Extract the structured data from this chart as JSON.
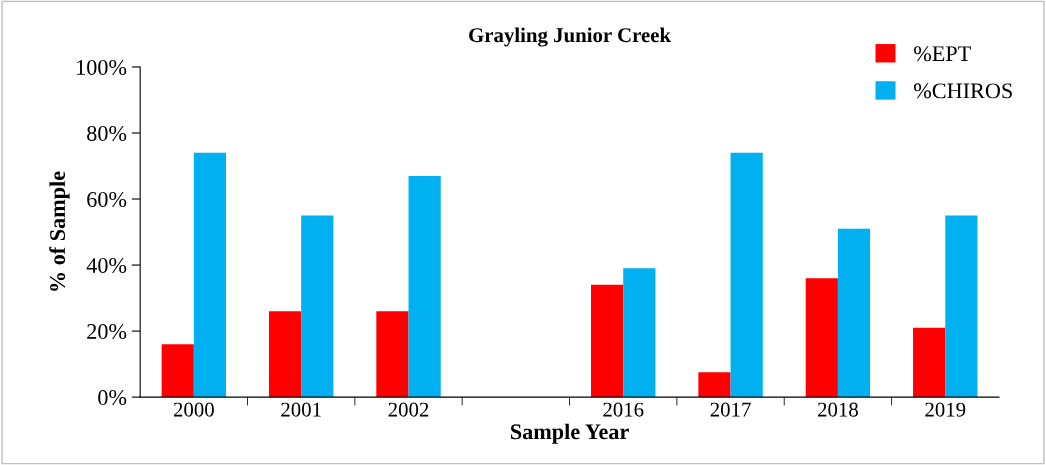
{
  "chart_data": {
    "type": "bar",
    "title": "Grayling Junior Creek",
    "xlabel": "Sample Year",
    "ylabel": "% of Sample",
    "categories": [
      "2000",
      "2001",
      "2002",
      null,
      "2016",
      "2017",
      "2018",
      "2019"
    ],
    "series": [
      {
        "name": "%EPT",
        "color": "#ff0000",
        "values": [
          16,
          26,
          26,
          null,
          34,
          7.5,
          36,
          21
        ]
      },
      {
        "name": "%CHIROS",
        "color": "#00b0f0",
        "values": [
          74,
          55,
          67,
          null,
          39,
          74,
          51,
          55
        ]
      }
    ],
    "ylim": [
      0,
      100
    ],
    "yticks": [
      {
        "value": 0,
        "label": "0%"
      },
      {
        "value": 20,
        "label": "20%"
      },
      {
        "value": 40,
        "label": "40%"
      },
      {
        "value": 60,
        "label": "60%"
      },
      {
        "value": 80,
        "label": "80%"
      },
      {
        "value": 100,
        "label": "100%"
      }
    ],
    "grid": false,
    "legend": "top right"
  }
}
